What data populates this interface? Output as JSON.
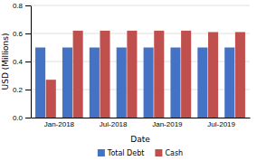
{
  "chart_data": {
    "type": "bar",
    "categories": [
      "Jan-2018",
      null,
      "Jul-2018",
      null,
      "Jan-2019",
      null,
      "Jul-2019",
      null
    ],
    "series": [
      {
        "name": "Total Debt",
        "color": "#4472C4",
        "values": [
          0.5,
          0.5,
          0.5,
          0.5,
          0.5,
          0.5,
          0.5,
          0.5
        ]
      },
      {
        "name": "Cash",
        "color": "#C0504D",
        "values": [
          0.27,
          0.62,
          0.62,
          0.62,
          0.62,
          0.62,
          0.61,
          0.61
        ]
      }
    ],
    "xlabel": "Date",
    "ylabel": "USD (Millions)",
    "ylim": [
      0.0,
      0.8
    ],
    "yticks": [
      {
        "value": 0.0,
        "label": "0.0"
      },
      0.2,
      0.4,
      0.6,
      0.8
    ],
    "grid": true,
    "legend": "bottom"
  }
}
